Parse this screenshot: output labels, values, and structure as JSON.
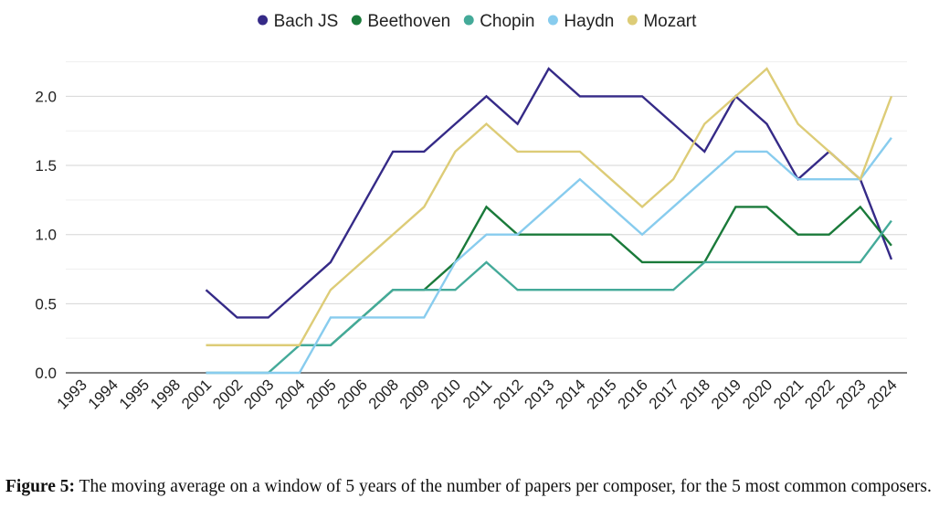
{
  "chart_data": {
    "type": "line",
    "x": [
      "1993",
      "1994",
      "1995",
      "1998",
      "2001",
      "2002",
      "2003",
      "2004",
      "2005",
      "2006",
      "2008",
      "2009",
      "2010",
      "2011",
      "2012",
      "2013",
      "2014",
      "2015",
      "2016",
      "2017",
      "2018",
      "2019",
      "2020",
      "2021",
      "2022",
      "2023",
      "2024"
    ],
    "series": [
      {
        "name": "Bach JS",
        "color": "#352a87",
        "values": [
          null,
          null,
          null,
          null,
          0.6,
          0.4,
          0.4,
          0.6,
          0.8,
          1.2,
          1.6,
          1.6,
          1.8,
          2.0,
          1.8,
          2.2,
          2.0,
          2.0,
          2.0,
          1.8,
          1.6,
          2.0,
          1.8,
          1.4,
          1.6,
          1.4,
          0.82
        ]
      },
      {
        "name": "Beethoven",
        "color": "#1a7a3a",
        "values": [
          null,
          null,
          null,
          null,
          0.2,
          0.2,
          0.2,
          0.2,
          0.2,
          0.4,
          0.6,
          0.6,
          0.8,
          1.2,
          1.0,
          1.0,
          1.0,
          1.0,
          0.8,
          0.8,
          0.8,
          1.2,
          1.2,
          1.0,
          1.0,
          1.2,
          0.92
        ]
      },
      {
        "name": "Chopin",
        "color": "#44aa99",
        "values": [
          null,
          null,
          null,
          null,
          0.0,
          0.0,
          0.0,
          0.2,
          0.2,
          0.4,
          0.6,
          0.6,
          0.6,
          0.8,
          0.6,
          0.6,
          0.6,
          0.6,
          0.6,
          0.6,
          0.8,
          0.8,
          0.8,
          0.8,
          0.8,
          0.8,
          1.1
        ]
      },
      {
        "name": "Haydn",
        "color": "#88ccee",
        "values": [
          null,
          null,
          null,
          null,
          0.0,
          0.0,
          0.0,
          0.0,
          0.4,
          0.4,
          0.4,
          0.4,
          0.8,
          1.0,
          1.0,
          1.2,
          1.4,
          1.2,
          1.0,
          1.2,
          1.4,
          1.6,
          1.6,
          1.4,
          1.4,
          1.4,
          1.7
        ]
      },
      {
        "name": "Mozart",
        "color": "#ddcc77",
        "values": [
          null,
          null,
          null,
          null,
          0.2,
          0.2,
          0.2,
          0.2,
          0.6,
          0.8,
          1.0,
          1.2,
          1.6,
          1.8,
          1.6,
          1.6,
          1.6,
          1.4,
          1.2,
          1.4,
          1.8,
          2.0,
          2.2,
          1.8,
          1.6,
          1.4,
          2.0
        ]
      }
    ],
    "yticks": [
      "0.0",
      "0.5",
      "1.0",
      "1.5",
      "2.0"
    ],
    "ylim": [
      0,
      2.3
    ],
    "grid": true,
    "legend": "top"
  },
  "caption": {
    "label": "Figure 5:",
    "text": "The moving average on a window of 5 years of the number of papers per composer, for the 5 most common composers."
  }
}
